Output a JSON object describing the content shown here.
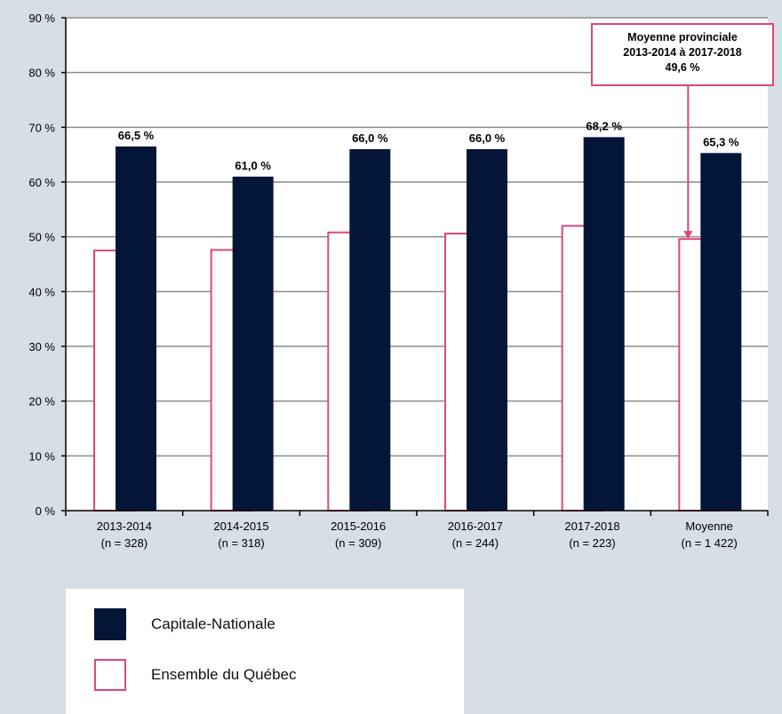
{
  "colors": {
    "capitale_nationale": "#041638",
    "ensemble_quebec_border": "#e0457f",
    "ensemble_quebec_fill": "#ffffff",
    "background": "#d6dee6",
    "plot_background": "#ffffff",
    "gridline": "#8c8c8c",
    "callout_border": "#e0457f"
  },
  "chart_data": {
    "type": "bar",
    "categories": [
      {
        "period": "2013-2014",
        "n": "(n = 328)"
      },
      {
        "period": "2014-2015",
        "n": "(n = 318)"
      },
      {
        "period": "2015-2016",
        "n": "(n = 309)"
      },
      {
        "period": "2016-2017",
        "n": "(n = 244)"
      },
      {
        "period": "2017-2018",
        "n": "(n = 223)"
      },
      {
        "period": "Moyenne",
        "n": "(n = 1 422)"
      }
    ],
    "series": [
      {
        "name": "Ensemble du Québec",
        "values": [
          47.5,
          47.6,
          50.8,
          50.6,
          52.0,
          49.6
        ],
        "data_labels": null
      },
      {
        "name": "Capitale-Nationale",
        "values": [
          66.5,
          61.0,
          66.0,
          66.0,
          68.2,
          65.3
        ],
        "data_labels": [
          "66,5 %",
          "61,0 %",
          "66,0 %",
          "66,0 %",
          "68,2 %",
          "65,3 %"
        ]
      }
    ],
    "ylim": [
      0,
      90
    ],
    "yticks": [
      0,
      10,
      20,
      30,
      40,
      50,
      60,
      70,
      80,
      90
    ],
    "ytick_labels": [
      "0 %",
      "10 %",
      "20 %",
      "30 %",
      "40 %",
      "50 %",
      "60 %",
      "70 %",
      "80 %",
      "90 %"
    ],
    "grid": true,
    "legend_placement": "bottom-left",
    "annotation": {
      "lines": [
        "Moyenne provinciale",
        "2013-2014 à 2017-2018",
        "49,6 %"
      ],
      "points_to": {
        "category": "Moyenne",
        "series": "Ensemble du Québec",
        "value": 49.6
      }
    }
  },
  "legend": {
    "items": [
      {
        "label": "Capitale-Nationale",
        "swatch": "filled"
      },
      {
        "label": "Ensemble du Québec",
        "swatch": "outline"
      }
    ]
  }
}
